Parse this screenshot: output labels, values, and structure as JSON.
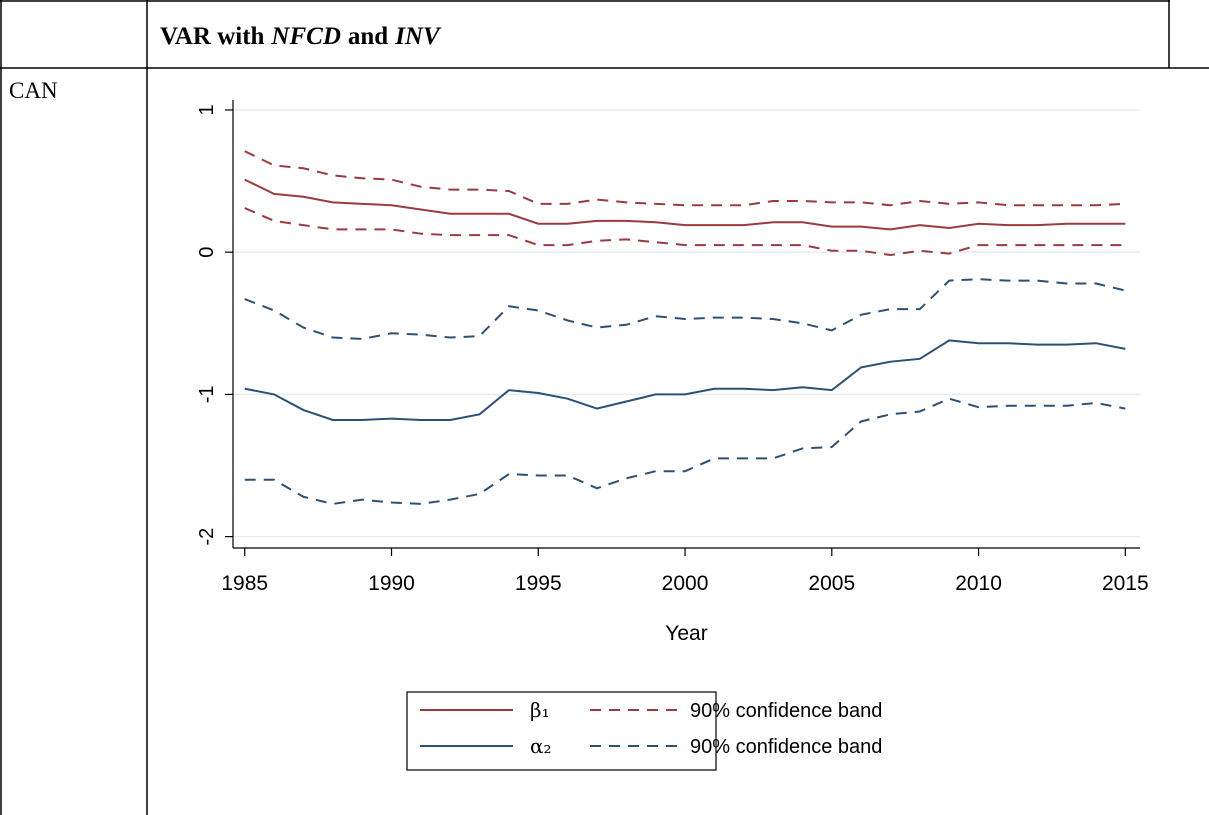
{
  "header": {
    "title": [
      "VAR with",
      "NFCD",
      "and",
      "INV"
    ]
  },
  "row_label": "CAN",
  "chart_data": {
    "type": "line",
    "xlabel": "Year",
    "x": [
      1985,
      1986,
      1987,
      1988,
      1989,
      1990,
      1991,
      1992,
      1993,
      1994,
      1995,
      1996,
      1997,
      1998,
      1999,
      2000,
      2001,
      2002,
      2003,
      2004,
      2005,
      2006,
      2007,
      2008,
      2009,
      2010,
      2011,
      2012,
      2013,
      2014,
      2015
    ],
    "xlim": [
      1984.6,
      2015.5
    ],
    "xticks": [
      1985,
      1990,
      1995,
      2000,
      2005,
      2010,
      2015
    ],
    "ylim": [
      -2.08,
      1.07
    ],
    "yticks": [
      -2,
      -1,
      0,
      1
    ],
    "grid": true,
    "series": [
      {
        "name": "β₁",
        "color": "#9c3b3f",
        "dash": false,
        "values": [
          0.51,
          0.41,
          0.39,
          0.35,
          0.34,
          0.33,
          0.3,
          0.27,
          0.27,
          0.27,
          0.2,
          0.2,
          0.22,
          0.22,
          0.21,
          0.19,
          0.19,
          0.19,
          0.21,
          0.21,
          0.18,
          0.18,
          0.16,
          0.19,
          0.17,
          0.2,
          0.19,
          0.19,
          0.2,
          0.2,
          0.2
        ]
      },
      {
        "name": "90% confidence band",
        "color": "#9c3b3f",
        "dash": true,
        "upper": [
          0.71,
          0.61,
          0.59,
          0.54,
          0.52,
          0.51,
          0.46,
          0.44,
          0.44,
          0.43,
          0.34,
          0.34,
          0.37,
          0.35,
          0.34,
          0.33,
          0.33,
          0.33,
          0.36,
          0.36,
          0.35,
          0.35,
          0.33,
          0.36,
          0.34,
          0.35,
          0.33,
          0.33,
          0.33,
          0.33,
          0.34
        ],
        "lower": [
          0.31,
          0.22,
          0.19,
          0.16,
          0.16,
          0.16,
          0.13,
          0.12,
          0.12,
          0.12,
          0.05,
          0.05,
          0.08,
          0.09,
          0.07,
          0.05,
          0.05,
          0.05,
          0.05,
          0.05,
          0.01,
          0.01,
          -0.02,
          0.01,
          -0.01,
          0.05,
          0.05,
          0.05,
          0.05,
          0.05,
          0.05
        ]
      },
      {
        "name": "α₂",
        "color": "#2d5076",
        "dash": false,
        "values": [
          -0.96,
          -1.0,
          -1.11,
          -1.18,
          -1.18,
          -1.17,
          -1.18,
          -1.18,
          -1.14,
          -0.97,
          -0.99,
          -1.03,
          -1.1,
          -1.05,
          -1.0,
          -1.0,
          -0.96,
          -0.96,
          -0.97,
          -0.95,
          -0.97,
          -0.81,
          -0.77,
          -0.75,
          -0.62,
          -0.64,
          -0.64,
          -0.65,
          -0.65,
          -0.64,
          -0.68
        ]
      },
      {
        "name": "90% confidence band",
        "color": "#2d5076",
        "dash": true,
        "upper": [
          -0.33,
          -0.41,
          -0.53,
          -0.6,
          -0.61,
          -0.57,
          -0.58,
          -0.6,
          -0.59,
          -0.38,
          -0.41,
          -0.48,
          -0.53,
          -0.51,
          -0.45,
          -0.47,
          -0.46,
          -0.46,
          -0.47,
          -0.5,
          -0.55,
          -0.44,
          -0.4,
          -0.4,
          -0.2,
          -0.19,
          -0.2,
          -0.2,
          -0.22,
          -0.22,
          -0.27
        ],
        "lower": [
          -1.6,
          -1.6,
          -1.72,
          -1.77,
          -1.74,
          -1.76,
          -1.77,
          -1.74,
          -1.7,
          -1.56,
          -1.57,
          -1.57,
          -1.66,
          -1.59,
          -1.54,
          -1.54,
          -1.45,
          -1.45,
          -1.45,
          -1.38,
          -1.37,
          -1.19,
          -1.14,
          -1.12,
          -1.03,
          -1.09,
          -1.08,
          -1.08,
          -1.08,
          -1.06,
          -1.1
        ]
      }
    ]
  }
}
